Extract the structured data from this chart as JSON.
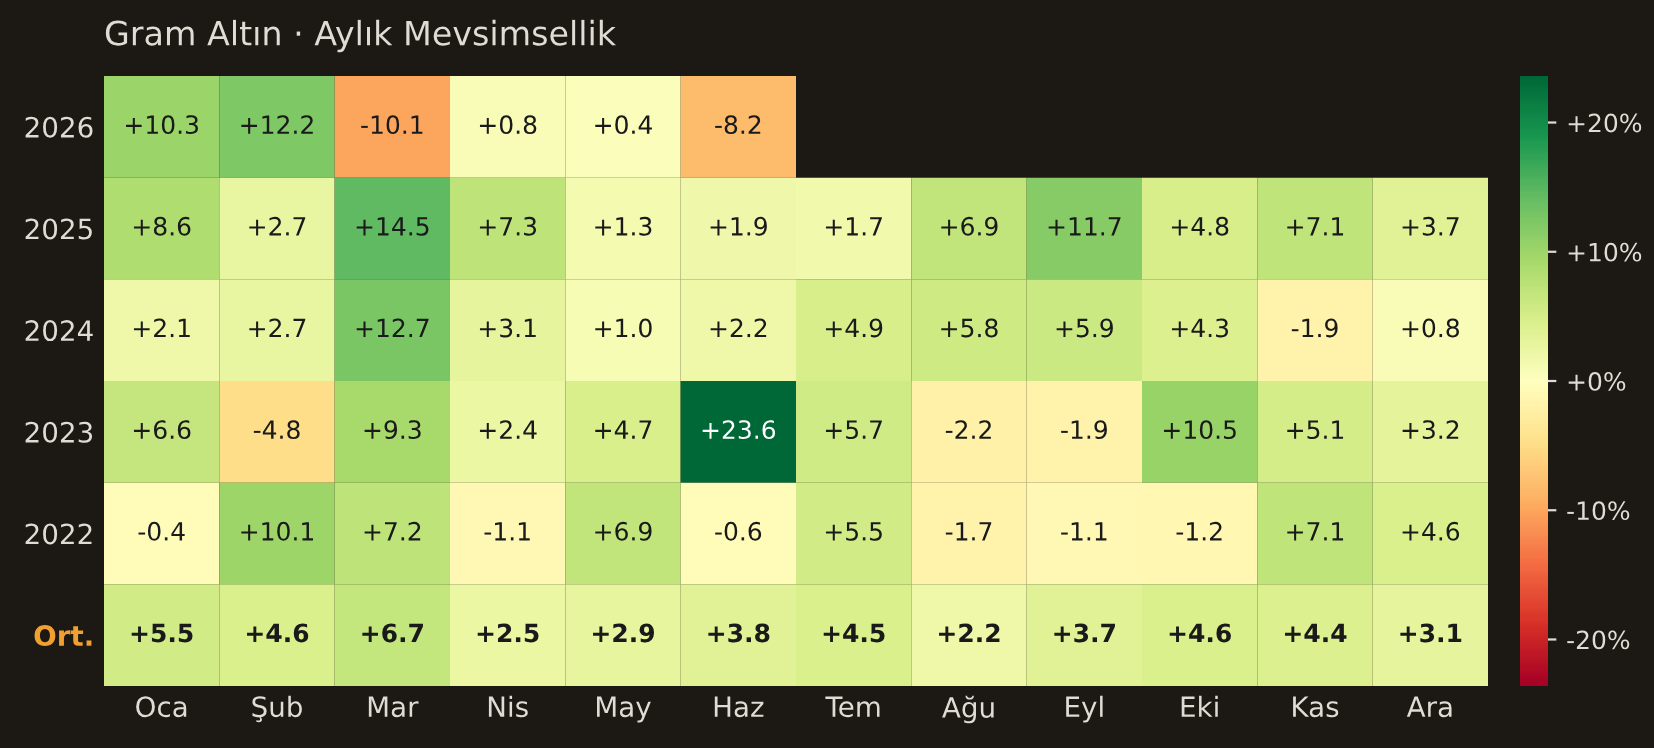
{
  "chart_data": {
    "type": "heatmap",
    "title": "Gram Altın · Aylık Mevsimsellik",
    "categories": [
      "Oca",
      "Şub",
      "Mar",
      "Nis",
      "May",
      "Haz",
      "Tem",
      "Ağu",
      "Eyl",
      "Eki",
      "Kas",
      "Ara"
    ],
    "y_categories": [
      "2026",
      "2025",
      "2024",
      "2023",
      "2022",
      "Ort."
    ],
    "cells": [
      [
        10.3,
        12.2,
        -10.1,
        0.8,
        0.4,
        -8.2,
        null,
        null,
        null,
        null,
        null,
        null
      ],
      [
        8.6,
        2.7,
        14.5,
        7.3,
        1.3,
        1.9,
        1.7,
        6.9,
        11.7,
        4.8,
        7.1,
        3.7
      ],
      [
        2.1,
        2.7,
        12.7,
        3.1,
        1.0,
        2.2,
        4.9,
        5.8,
        5.9,
        4.3,
        -1.9,
        0.8
      ],
      [
        6.6,
        -4.8,
        9.3,
        2.4,
        4.7,
        23.6,
        5.7,
        -2.2,
        -1.9,
        10.5,
        5.1,
        3.2
      ],
      [
        -0.4,
        10.1,
        7.2,
        -1.1,
        6.9,
        -0.6,
        5.5,
        -1.7,
        -1.1,
        -1.2,
        7.1,
        4.6
      ],
      [
        5.5,
        4.6,
        6.7,
        2.5,
        2.9,
        3.8,
        4.5,
        2.2,
        3.7,
        4.6,
        4.4,
        3.1
      ]
    ],
    "cell_labels": [
      [
        "+10.3",
        "+12.2",
        "-10.1",
        "+0.8",
        "+0.4",
        "-8.2",
        null,
        null,
        null,
        null,
        null,
        null
      ],
      [
        "+8.6",
        "+2.7",
        "+14.5",
        "+7.3",
        "+1.3",
        "+1.9",
        "+1.7",
        "+6.9",
        "+11.7",
        "+4.8",
        "+7.1",
        "+3.7"
      ],
      [
        "+2.1",
        "+2.7",
        "+12.7",
        "+3.1",
        "+1.0",
        "+2.2",
        "+4.9",
        "+5.8",
        "+5.9",
        "+4.3",
        "-1.9",
        "+0.8"
      ],
      [
        "+6.6",
        "-4.8",
        "+9.3",
        "+2.4",
        "+4.7",
        "+23.6",
        "+5.7",
        "-2.2",
        "-1.9",
        "+10.5",
        "+5.1",
        "+3.2"
      ],
      [
        "-0.4",
        "+10.1",
        "+7.2",
        "-1.1",
        "+6.9",
        "-0.6",
        "+5.5",
        "-1.7",
        "-1.1",
        "-1.2",
        "+7.1",
        "+4.6"
      ],
      [
        "+5.5",
        "+4.6",
        "+6.7",
        "+2.5",
        "+2.9",
        "+3.8",
        "+4.5",
        "+2.2",
        "+3.7",
        "+4.6",
        "+4.4",
        "+3.1"
      ]
    ],
    "clim": [
      -23.6,
      23.6
    ],
    "cticks": [
      {
        "value": -20,
        "label": "-20%"
      },
      {
        "value": -10,
        "label": "-10%"
      },
      {
        "value": 0,
        "label": "+0%"
      },
      {
        "value": 10,
        "label": "+10%"
      },
      {
        "value": 20,
        "label": "+20%"
      }
    ]
  }
}
